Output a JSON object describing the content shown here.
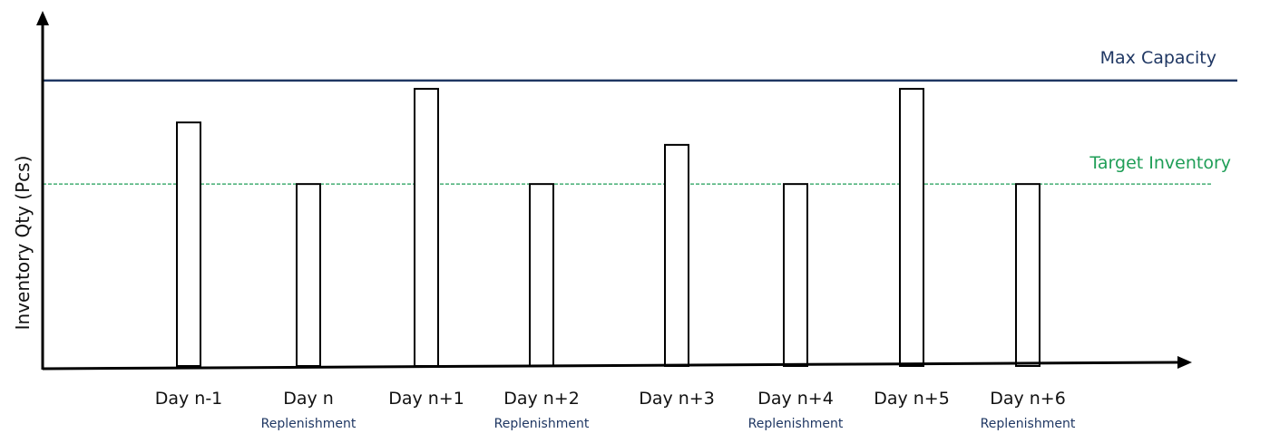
{
  "chart_data": {
    "type": "bar",
    "title": "",
    "xlabel": "",
    "ylabel": "Inventory Qty (Pcs)",
    "categories": [
      "Day n-1",
      "Day n",
      "Day n+1",
      "Day n+2",
      "Day n+3",
      "Day n+4",
      "Day n+5",
      "Day n+6"
    ],
    "sublabels": [
      "",
      "Replenishment",
      "",
      "Replenishment",
      "",
      "Replenishment",
      "",
      "Replenishment"
    ],
    "values": [
      87,
      65,
      99,
      65,
      79,
      65,
      99,
      65
    ],
    "ylim": [
      0,
      100
    ],
    "grid": false,
    "reference_lines": [
      {
        "label": "Max Capacity",
        "value": 102,
        "style": "solid",
        "color": "#1f3763"
      },
      {
        "label": "Target Inventory",
        "value": 65,
        "style": "dashed",
        "color": "#1f9e57"
      }
    ],
    "colors": {
      "axis": "#000000",
      "bar_fill": "#ffffff",
      "bar_stroke": "#000000",
      "sublabel": "#1f3763"
    }
  }
}
